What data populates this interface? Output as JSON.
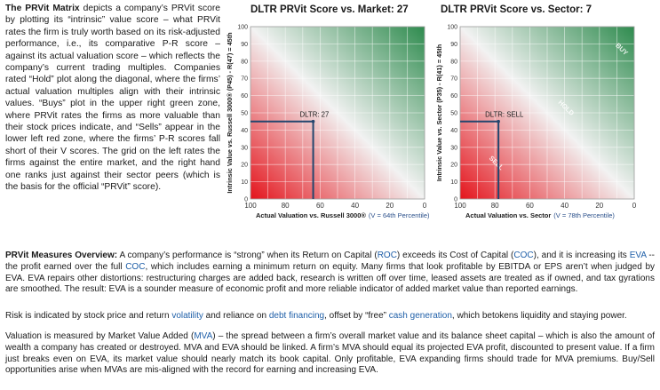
{
  "intro": {
    "title": "The PRVit Matrix",
    "text": " depicts a company’s PRVit score by plotting its “intrinsic” value score – what PRVit rates the firm is truly worth based on its risk-adjusted performance, i.e., its comparative P-R score – against its actual valuation score – which reflects the company’s current trading multiples. Companies rated “Hold” plot along the diagonal, where the firms’ actual valuation multiples align with their intrinsic values. “Buys” plot in the upper right green zone, where PRVit rates the firms as more valuable than their stock prices indicate, and “Sells” appear in the lower left red zone, where the firms’ P-R scores fall short of their V scores. The grid on the left rates the firms against the entire market, and the right hand one ranks just against their sector peers (which is the basis for the official “PRVit” score)."
  },
  "chart_data": [
    {
      "type": "scatter",
      "title": "DLTR PRVit Score vs. Market: 27",
      "xlabel": "Actual Valuation vs. Russell 3000®",
      "xlabel_note": "(V = 64th Percentile)",
      "ylabel": "Intrinsic Value vs. Russell 3000® (P45) - R(47) = 45th",
      "x_axis": "reversed",
      "xlim": [
        100,
        0
      ],
      "ylim": [
        0,
        100
      ],
      "x_ticks": [
        100,
        80,
        60,
        40,
        20,
        0
      ],
      "y_ticks": [
        0,
        10,
        20,
        30,
        40,
        50,
        60,
        70,
        80,
        90,
        100
      ],
      "point": {
        "label": "DLTR: 27",
        "x": 64,
        "y": 45
      },
      "zone_labels": [],
      "colors": {
        "sell": "#e4141c",
        "buy": "#2e8b4e",
        "mid": "#f2f2f2",
        "marker": "#24466e"
      }
    },
    {
      "type": "scatter",
      "title": "DLTR PRVit Score vs. Sector: 7",
      "xlabel": "Actual Valuation vs. Sector",
      "xlabel_note": "(V = 78th Percentile)",
      "ylabel": "Intrinsic Value vs. Sector (P35) - R(41) = 45th",
      "x_axis": "reversed",
      "xlim": [
        100,
        0
      ],
      "ylim": [
        0,
        100
      ],
      "x_ticks": [
        100,
        80,
        60,
        40,
        20,
        0
      ],
      "y_ticks": [
        0,
        10,
        20,
        30,
        40,
        50,
        60,
        70,
        80,
        90,
        100
      ],
      "point": {
        "label": "DLTR: SELL",
        "x": 78,
        "y": 45
      },
      "zone_labels": [
        {
          "text": "BUY",
          "x": 8,
          "y": 86
        },
        {
          "text": "HOLD",
          "x": 40,
          "y": 52
        },
        {
          "text": "SELL",
          "x": 80,
          "y": 20
        }
      ],
      "colors": {
        "sell": "#e4141c",
        "buy": "#2e8b4e",
        "mid": "#f2f2f2",
        "marker": "#24466e"
      }
    }
  ],
  "overview": {
    "heading": "PRVit Measures Overview:",
    "p1": [
      {
        "t": " A company’s performance is “strong” when its Return on Capital ("
      },
      {
        "t": "ROC",
        "link": true
      },
      {
        "t": ") exceeds its Cost of Capital ("
      },
      {
        "t": "COC",
        "link": true
      },
      {
        "t": "), and it is increasing its "
      },
      {
        "t": "EVA",
        "link": true
      },
      {
        "t": " -- the profit earned over the full "
      },
      {
        "t": "COC",
        "link": true
      },
      {
        "t": ", which includes earning a minimum return on equity. Many firms that look profitable by EBITDA or EPS aren’t when judged by EVA. EVA repairs other distortions: restructuring charges are added back, research is written off over time, leased assets are treated as if owned, and tax gyrations are smoothed. The result: EVA is a sounder measure of economic profit and more reliable indicator of added market value than reported earnings."
      }
    ],
    "p2": [
      {
        "t": "Risk is indicated by stock price and return "
      },
      {
        "t": "volatility",
        "link": true
      },
      {
        "t": " and reliance on "
      },
      {
        "t": "debt financing",
        "link": true
      },
      {
        "t": ", offset by “free” "
      },
      {
        "t": "cash generation",
        "link": true
      },
      {
        "t": ", which betokens liquidity and staying power."
      }
    ],
    "p3": [
      {
        "t": "Valuation is measured by Market Value Added ("
      },
      {
        "t": "MVA",
        "link": true
      },
      {
        "t": ") – the spread between a firm’s overall market value and its balance sheet capital – which is also the amount of wealth a company has created or destroyed. MVA and EVA should be linked. A firm’s MVA should equal its projected EVA profit, discounted to present value. If a firm just breaks even on EVA, its market value should nearly match its book capital. Only profitable, EVA expanding firms should trade for MVA premiums. Buy/Sell opportunities arise when MVAs are mis-aligned with the record for earning and increasing EVA."
      }
    ]
  }
}
